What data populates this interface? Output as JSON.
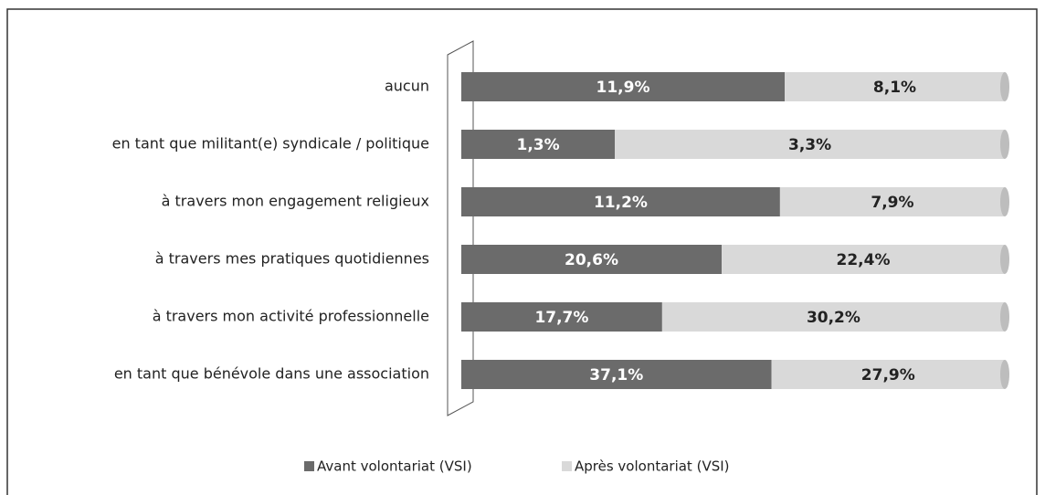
{
  "chart_data": {
    "type": "bar",
    "stacking": "percent",
    "categories": [
      "aucun",
      "en tant que militant(e) syndicale / politique",
      "à travers mon engagement religieux",
      "à travers mes pratiques quotidiennes",
      "à travers mon activité professionnelle",
      "en tant que bénévole dans une association"
    ],
    "series": [
      {
        "name": "Avant volontariat (VSI)",
        "color": "#6b6b6b",
        "values": [
          11.9,
          1.3,
          11.2,
          20.6,
          17.7,
          37.1
        ],
        "value_labels": [
          "11,9%",
          "1,3%",
          "11,2%",
          "20,6%",
          "17,7%",
          "37,1%"
        ]
      },
      {
        "name": "Après volontariat (VSI)",
        "color": "#d9d9d9",
        "values": [
          8.1,
          3.3,
          7.9,
          22.4,
          30.2,
          27.9
        ],
        "value_labels": [
          "8,1%",
          "3,3%",
          "7,9%",
          "22,4%",
          "30,2%",
          "27,9%"
        ]
      }
    ],
    "legend": "bottom"
  }
}
